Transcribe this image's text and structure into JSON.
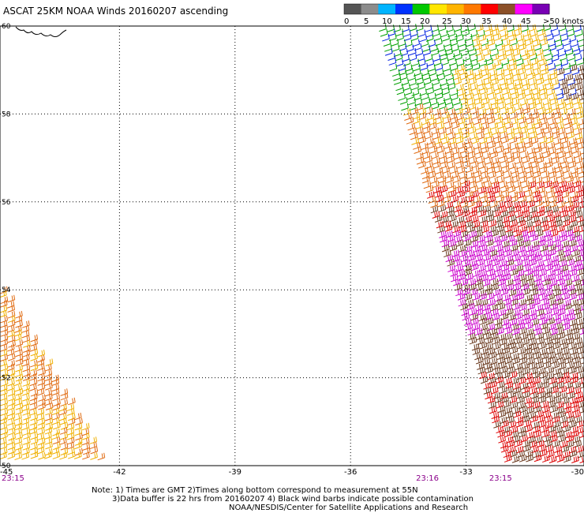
{
  "title": "ASCAT 25KM NOAA Winds 20160207 ascending",
  "legend": {
    "labels": [
      "0",
      "5",
      "10",
      "15",
      "20",
      "25",
      "30",
      "35",
      "40",
      "45",
      ">50 knots"
    ],
    "colors": [
      "#555555",
      "#8c8c8c",
      "#00b4ff",
      "#0032ff",
      "#00c800",
      "#ffe600",
      "#ffb400",
      "#ff7800",
      "#ff0000",
      "#8c5028",
      "#ff00ff",
      "#7800b4"
    ]
  },
  "lat_labels": [
    "60",
    "58",
    "56",
    "54",
    "52",
    "50"
  ],
  "lon_labels": [
    "-45",
    "-42",
    "-39",
    "-36",
    "-33",
    "-30"
  ],
  "time_labels": [
    {
      "text": "23:15",
      "lon": -45
    },
    {
      "text": "23:16",
      "lon": -34.3
    },
    {
      "text": "23:15",
      "lon": -32.4
    }
  ],
  "notes": [
    "Note: 1) Times are GMT 2)Times along bottom correspond to measurement at 55N",
    "3)Data buffer is 22 hrs from 20160207 4) Black wind barbs indicate possible contamination",
    "NOAA/NESDIS/Center for Satellite Applications and Research"
  ],
  "colors": {
    "grid": "#000000",
    "time_label": "#8b008b",
    "barb_strong": "#cc00cc",
    "barb_brown": "#6b3a1f",
    "barb_red": "#dd0000",
    "barb_orange": "#e06a10",
    "barb_yellow": "#f0b000",
    "barb_green": "#00a000",
    "barb_blue": "#0020e0"
  },
  "land": "Greenland coastline (top-left corner)"
}
